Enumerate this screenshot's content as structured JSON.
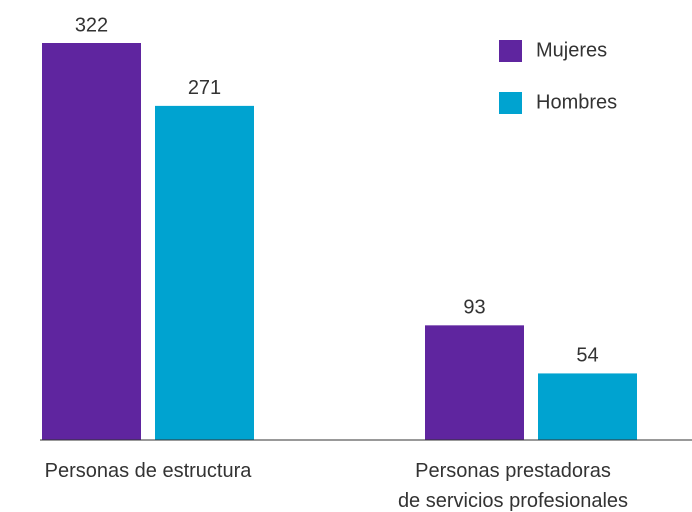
{
  "chart_data": {
    "type": "bar",
    "categories": [
      "Personas de estructura",
      "Personas prestadoras\nde servicios profesionales"
    ],
    "series": [
      {
        "name": "Mujeres",
        "color": "#5f259f",
        "values": [
          322,
          93
        ]
      },
      {
        "name": "Hombres",
        "color": "#00a3d0",
        "values": [
          271,
          54
        ]
      }
    ],
    "legend": "upper right"
  }
}
